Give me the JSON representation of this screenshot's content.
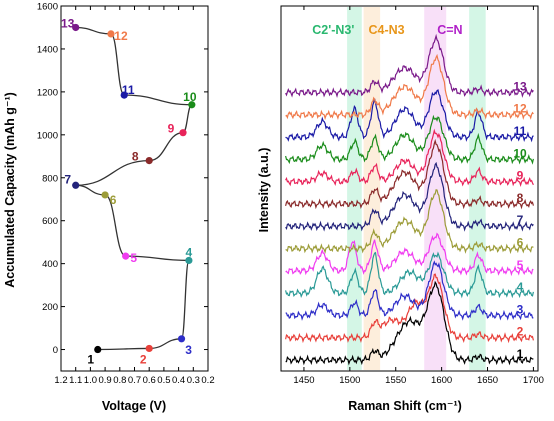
{
  "chart_data": [
    {
      "type": "line",
      "xlabel": "Voltage (V)",
      "ylabel": "Accumulated Capacity (mAh g⁻¹)",
      "xlim": [
        1.2,
        0.2
      ],
      "ylim": [
        -100,
        1600
      ],
      "x_ticks": [
        "1.2",
        "1.1",
        "1.0",
        "0.9",
        "0.8",
        "0.7",
        "0.6",
        "0.5",
        "0.4",
        "0.3",
        "0.2"
      ],
      "y_ticks": [
        "0",
        "200",
        "400",
        "600",
        "800",
        "1000",
        "1200",
        "1400",
        "1600"
      ],
      "points": [
        {
          "label": "1",
          "x": 0.95,
          "y": 0,
          "color": "#000000"
        },
        {
          "label": "2",
          "x": 0.6,
          "y": 5,
          "color": "#e8403a"
        },
        {
          "label": "3",
          "x": 0.38,
          "y": 50,
          "color": "#2e2ec8"
        },
        {
          "label": "4",
          "x": 0.33,
          "y": 415,
          "color": "#2a9a96"
        },
        {
          "label": "5",
          "x": 0.76,
          "y": 435,
          "color": "#f03cf0"
        },
        {
          "label": "6",
          "x": 0.9,
          "y": 720,
          "color": "#9c9c38"
        },
        {
          "label": "7",
          "x": 1.1,
          "y": 765,
          "color": "#23237a"
        },
        {
          "label": "8",
          "x": 0.6,
          "y": 880,
          "color": "#8a2a2a"
        },
        {
          "label": "9",
          "x": 0.37,
          "y": 1010,
          "color": "#e8245a"
        },
        {
          "label": "10",
          "x": 0.31,
          "y": 1140,
          "color": "#1a8c1a"
        },
        {
          "label": "11",
          "x": 0.77,
          "y": 1185,
          "color": "#1a1aa6"
        },
        {
          "label": "12",
          "x": 0.86,
          "y": 1470,
          "color": "#f07a4a"
        },
        {
          "label": "13",
          "x": 1.1,
          "y": 1500,
          "color": "#7a1a8a"
        }
      ]
    },
    {
      "type": "line",
      "xlabel": "Raman Shift (cm⁻¹)",
      "ylabel": "Intensity (a.u.)",
      "xlim": [
        1425,
        1705
      ],
      "x_ticks": [
        "1450",
        "1500",
        "1550",
        "1600",
        "1650",
        "1700"
      ],
      "bands": [
        {
          "label": "C2'-N3'",
          "range": [
            1497,
            1513
          ],
          "color": "#3dd68c"
        },
        {
          "label": "C4-N3",
          "range": [
            1515,
            1533
          ],
          "color": "#f5b060"
        },
        {
          "label": "C=N",
          "range": [
            1581,
            1605
          ],
          "color": "#e070e0"
        },
        {
          "label": "",
          "range": [
            1630,
            1648
          ],
          "color": "#3dd68c"
        }
      ],
      "series": [
        {
          "name": "1",
          "color": "#000000",
          "offset": 0
        },
        {
          "name": "2",
          "color": "#e8403a",
          "offset": 1
        },
        {
          "name": "3",
          "color": "#2e2ec8",
          "offset": 2
        },
        {
          "name": "4",
          "color": "#2a9a96",
          "offset": 3
        },
        {
          "name": "5",
          "color": "#f03cf0",
          "offset": 4
        },
        {
          "name": "6",
          "color": "#9c9c38",
          "offset": 5
        },
        {
          "name": "7",
          "color": "#23237a",
          "offset": 6
        },
        {
          "name": "8",
          "color": "#8a2a2a",
          "offset": 7
        },
        {
          "name": "9",
          "color": "#e8245a",
          "offset": 8
        },
        {
          "name": "10",
          "color": "#1a8c1a",
          "offset": 9
        },
        {
          "name": "11",
          "color": "#1a1aa6",
          "offset": 10
        },
        {
          "name": "12",
          "color": "#f07a4a",
          "offset": 11
        },
        {
          "name": "13",
          "color": "#7a1a8a",
          "offset": 12
        }
      ]
    }
  ]
}
